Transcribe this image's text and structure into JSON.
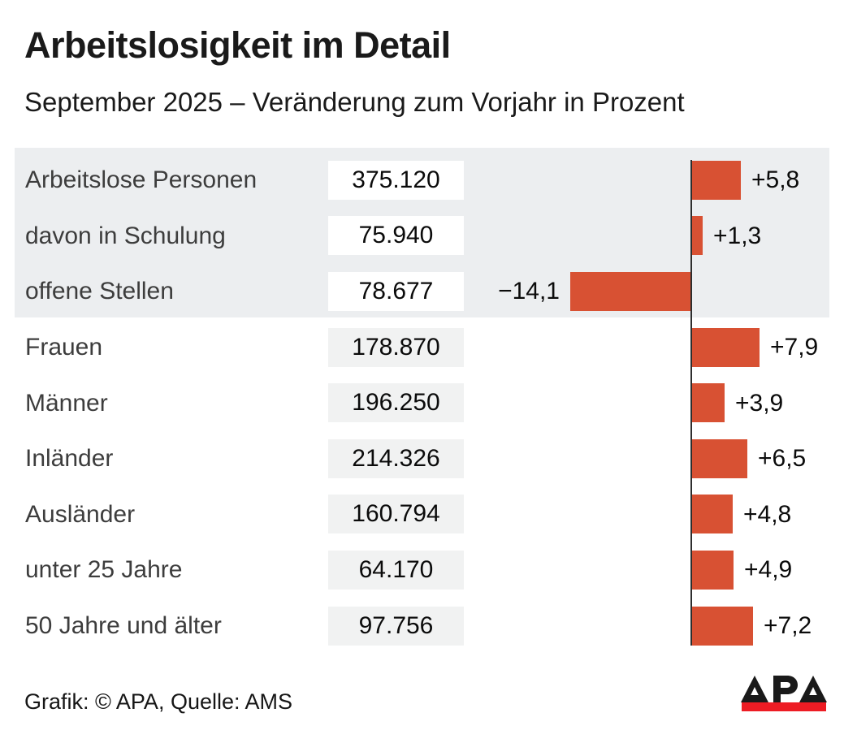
{
  "chart_data": {
    "type": "bar",
    "orientation": "horizontal",
    "title": "Arbeitslosigkeit im Detail",
    "subtitle": "September 2025 – Veränderung zum Vorjahr in Prozent",
    "unit": "Prozent (Veränderung zum Vorjahr)",
    "categories": [
      "Arbeitslose Personen",
      "davon in Schulung",
      "offene Stellen",
      "Frauen",
      "Männer",
      "Inländer",
      "Ausländer",
      "unter 25 Jahre",
      "50 Jahre und älter"
    ],
    "absolute_values": [
      "375.120",
      "75.940",
      "78.677",
      "178.870",
      "196.250",
      "214.326",
      "160.794",
      "64.170",
      "97.756"
    ],
    "values": [
      5.8,
      1.3,
      -14.1,
      7.9,
      3.9,
      6.5,
      4.8,
      4.9,
      7.2
    ],
    "value_labels": [
      "+5,8",
      "+1,3",
      "−14,1",
      "+7,9",
      "+3,9",
      "+6,5",
      "+4,8",
      "+4,9",
      "+7,2"
    ],
    "xlim": [
      -15,
      9
    ],
    "grid": false,
    "legend": false,
    "highlight_band_rows": [
      0,
      1,
      2
    ]
  },
  "footer": {
    "credit": "Grafik: © APA, Quelle: AMS"
  },
  "logo": {
    "text": "APA"
  },
  "colors": {
    "bar": "#d85133",
    "band_background": "#eceef0",
    "value_box_gray": "#f1f2f2",
    "axis": "#2e2e2e",
    "ink": "#1a1a1a",
    "label": "#3d3d3d",
    "logo_red": "#ed1c24"
  }
}
